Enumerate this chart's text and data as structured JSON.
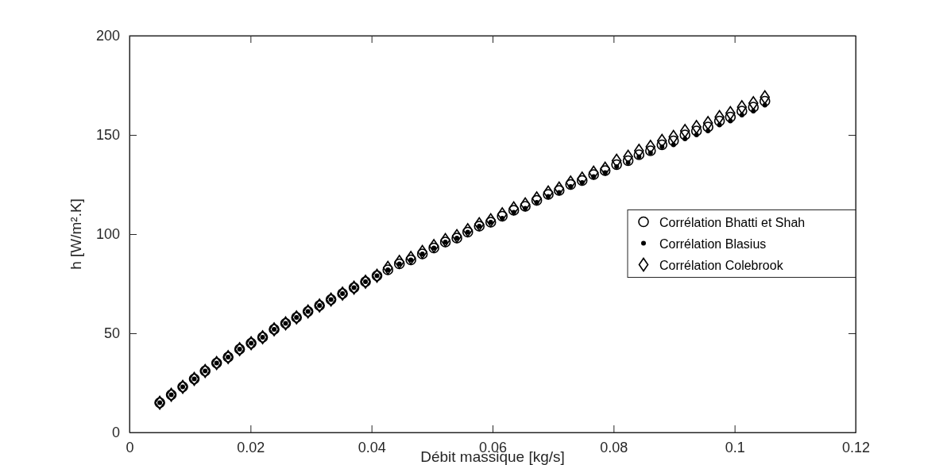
{
  "chart_data": {
    "type": "scatter",
    "xlabel": "Débit massique [kg/s]",
    "ylabel": "h [W/m².K]",
    "x": [
      0.005,
      0.0069,
      0.0088,
      0.0107,
      0.0125,
      0.0144,
      0.0163,
      0.0182,
      0.0201,
      0.022,
      0.0239,
      0.0258,
      0.0276,
      0.0295,
      0.0314,
      0.0333,
      0.0352,
      0.0371,
      0.039,
      0.0409,
      0.0427,
      0.0446,
      0.0465,
      0.0484,
      0.0503,
      0.0522,
      0.0541,
      0.0559,
      0.0578,
      0.0597,
      0.0616,
      0.0635,
      0.0654,
      0.0673,
      0.0692,
      0.071,
      0.0729,
      0.0748,
      0.0767,
      0.0786,
      0.0805,
      0.0824,
      0.0842,
      0.0861,
      0.088,
      0.0899,
      0.0918,
      0.0937,
      0.0956,
      0.0975,
      0.0993,
      0.1012,
      0.1031,
      0.105
    ],
    "series": [
      {
        "name": "Corrélation Bhatti et Shah",
        "color": "#000000",
        "marker": "circle",
        "values": [
          15,
          19,
          23,
          27,
          31,
          35,
          38,
          42,
          45,
          48,
          52,
          55,
          58,
          61,
          64,
          67,
          70,
          73,
          76,
          79,
          82,
          85,
          87,
          90,
          93,
          96,
          98,
          101,
          104,
          106,
          109,
          112,
          114,
          117,
          120,
          122,
          125,
          127,
          130,
          132,
          135,
          137,
          140,
          142,
          145,
          147,
          150,
          152,
          154,
          157,
          159,
          162,
          164,
          167
        ]
      },
      {
        "name": "Corrélation Blasius",
        "color": "#000000",
        "marker": "circle",
        "values": [
          15,
          19,
          23,
          27,
          31,
          35,
          38,
          42,
          45,
          48,
          52,
          55,
          58,
          61,
          64,
          67,
          70,
          73,
          76,
          79,
          82,
          85,
          87,
          90,
          93,
          96,
          98,
          101,
          104,
          106,
          108,
          111,
          113,
          116,
          119,
          121,
          124,
          126,
          129,
          131,
          134,
          136,
          139,
          141,
          144,
          145,
          148,
          150,
          152,
          155,
          157,
          160,
          162,
          165
        ]
      },
      {
        "name": "Corrélation Colebrook",
        "color": "#000000",
        "marker": "diamond",
        "values": [
          15,
          19,
          23,
          27,
          31,
          35,
          38,
          42,
          45,
          48,
          52,
          55,
          58,
          61,
          64,
          67,
          70,
          73,
          76,
          79,
          83,
          86,
          88,
          91,
          94,
          97,
          99,
          102,
          105,
          107,
          110,
          113,
          115,
          118,
          121,
          123,
          126,
          128,
          131,
          133,
          137,
          139,
          142,
          144,
          147,
          149,
          152,
          154,
          156,
          159,
          161,
          164,
          166,
          169
        ]
      }
    ],
    "xlim": [
      0,
      0.12
    ],
    "xticks": [
      0,
      0.02,
      0.04,
      0.06,
      0.08,
      0.1,
      0.12
    ],
    "ylim": [
      0,
      200
    ],
    "yticks": [
      0,
      50,
      100,
      150,
      200
    ],
    "legend": "right",
    "grid": false
  }
}
